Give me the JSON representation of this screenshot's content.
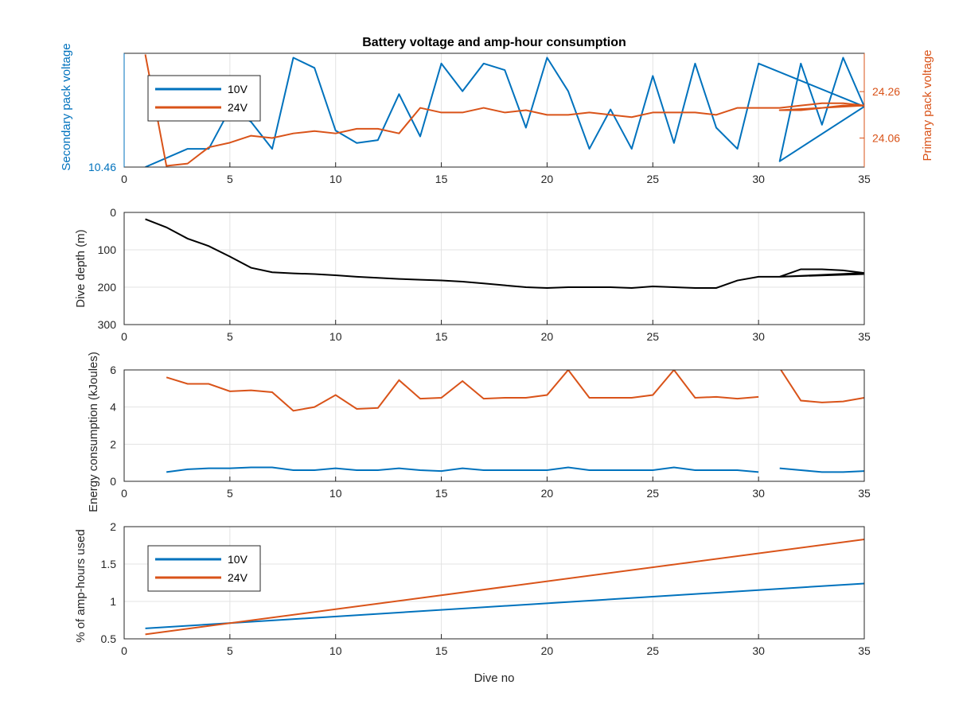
{
  "figure_title": "Battery voltage and amp-hour consumption",
  "chart_data": [
    {
      "type": "line",
      "title": "Battery voltage and amp-hour consumption",
      "xlabel": "",
      "ylabel_left": "Secondary pack voltage",
      "ylabel_right": "Primary pack voltage",
      "xlim": [
        0,
        35
      ],
      "xticks": [
        0,
        5,
        10,
        15,
        20,
        25,
        30,
        35
      ],
      "yticks_left": [
        "10.46"
      ],
      "yticks_right": [
        "24.06",
        "24.26"
      ],
      "grid": true,
      "legend": {
        "position": "top-left",
        "entries": [
          "10V",
          "24V"
        ]
      },
      "series": [
        {
          "name": "10V",
          "color": "#0072BD",
          "axis": "left",
          "x": [
            1,
            3,
            4,
            5,
            6,
            7,
            8,
            9,
            10,
            11,
            12,
            13,
            14,
            15,
            16,
            17,
            18,
            19,
            20,
            21,
            22,
            23,
            24,
            25,
            26,
            27,
            28,
            29,
            30,
            35,
            31,
            32,
            33,
            34,
            35
          ],
          "y": [
            10.46,
            10.71,
            10.71,
            11.25,
            11.08,
            10.71,
            11.96,
            11.82,
            10.96,
            10.79,
            10.83,
            11.46,
            10.88,
            11.88,
            11.5,
            11.88,
            11.79,
            11.0,
            11.96,
            11.5,
            10.71,
            11.25,
            10.71,
            11.71,
            10.79,
            11.88,
            11.0,
            10.71,
            11.88,
            11.29,
            10.54,
            11.88,
            11.04,
            11.96,
            11.29
          ]
        },
        {
          "name": "24V",
          "color": "#D95319",
          "axis": "right",
          "x": [
            1,
            2,
            3,
            4,
            5,
            6,
            7,
            8,
            9,
            10,
            11,
            12,
            13,
            14,
            15,
            16,
            17,
            18,
            19,
            20,
            21,
            22,
            23,
            24,
            25,
            26,
            27,
            28,
            29,
            30,
            31,
            32,
            33,
            34,
            35,
            31,
            32,
            33,
            34,
            35
          ],
          "y": [
            24.42,
            23.94,
            23.95,
            24.02,
            24.04,
            24.07,
            24.06,
            24.08,
            24.09,
            24.08,
            24.1,
            24.1,
            24.08,
            24.19,
            24.17,
            24.17,
            24.19,
            24.17,
            24.18,
            24.16,
            24.16,
            24.17,
            24.16,
            24.15,
            24.17,
            24.17,
            24.17,
            24.16,
            24.19,
            24.19,
            24.19,
            24.2,
            24.21,
            24.21,
            24.2,
            24.18,
            24.18,
            24.19,
            24.2,
            24.2
          ]
        }
      ]
    },
    {
      "type": "line",
      "title": "",
      "xlabel": "",
      "ylabel": "Dive depth (m)",
      "xlim": [
        0,
        35
      ],
      "ylim": [
        0,
        300
      ],
      "y_reversed": true,
      "xticks": [
        0,
        5,
        10,
        15,
        20,
        25,
        30,
        35
      ],
      "yticks": [
        0,
        100,
        200,
        300
      ],
      "grid": true,
      "series": [
        {
          "color": "#000000",
          "x": [
            1,
            2,
            3,
            4,
            5,
            6,
            7,
            8,
            9,
            10,
            11,
            12,
            13,
            14,
            15,
            16,
            17,
            18,
            19,
            20,
            21,
            22,
            23,
            24,
            25,
            26,
            27,
            28,
            29,
            30,
            31,
            32,
            33,
            34,
            35,
            31,
            35
          ],
          "y": [
            18,
            40,
            70,
            90,
            118,
            148,
            160,
            163,
            165,
            168,
            172,
            175,
            178,
            180,
            182,
            185,
            190,
            195,
            200,
            202,
            200,
            200,
            200,
            202,
            198,
            200,
            202,
            202,
            182,
            172,
            172,
            152,
            152,
            155,
            162,
            172,
            165
          ]
        }
      ]
    },
    {
      "type": "line",
      "title": "",
      "xlabel": "",
      "ylabel": "Energy consumption (kJoules)",
      "xlim": [
        0,
        35
      ],
      "ylim": [
        0,
        6
      ],
      "xticks": [
        0,
        5,
        10,
        15,
        20,
        25,
        30,
        35
      ],
      "yticks": [
        0,
        2,
        4,
        6
      ],
      "grid": true,
      "series": [
        {
          "color": "#D95319",
          "segments": [
            {
              "x": [
                2,
                3,
                4,
                5,
                6,
                7,
                8,
                9,
                10,
                11,
                12,
                13,
                14,
                15,
                16,
                17,
                18,
                19,
                20,
                21,
                22,
                23,
                24,
                25,
                26,
                27,
                28,
                29,
                30
              ],
              "y": [
                5.6,
                5.25,
                5.25,
                4.85,
                4.9,
                4.8,
                3.8,
                4.0,
                4.65,
                3.9,
                3.95,
                5.45,
                4.45,
                4.5,
                5.4,
                4.45,
                4.5,
                4.5,
                4.65,
                6.0,
                4.5,
                4.5,
                4.5,
                4.65,
                6.0,
                4.5,
                4.55,
                4.45,
                4.55
              ]
            },
            {
              "x": [
                31,
                32,
                33,
                34,
                35
              ],
              "y": [
                6.1,
                4.35,
                4.25,
                4.3,
                4.5
              ]
            }
          ]
        },
        {
          "color": "#0072BD",
          "segments": [
            {
              "x": [
                2,
                3,
                4,
                5,
                6,
                7,
                8,
                9,
                10,
                11,
                12,
                13,
                14,
                15,
                16,
                17,
                18,
                19,
                20,
                21,
                22,
                23,
                24,
                25,
                26,
                27,
                28,
                29,
                30
              ],
              "y": [
                0.5,
                0.65,
                0.7,
                0.7,
                0.75,
                0.75,
                0.6,
                0.6,
                0.7,
                0.6,
                0.6,
                0.7,
                0.6,
                0.55,
                0.7,
                0.6,
                0.6,
                0.6,
                0.6,
                0.75,
                0.6,
                0.6,
                0.6,
                0.6,
                0.75,
                0.6,
                0.6,
                0.6,
                0.5
              ]
            },
            {
              "x": [
                31,
                32,
                33,
                34,
                35
              ],
              "y": [
                0.7,
                0.6,
                0.5,
                0.5,
                0.55
              ]
            }
          ]
        }
      ]
    },
    {
      "type": "line",
      "title": "",
      "xlabel": "Dive no",
      "ylabel": "% of amp-hours used",
      "xlim": [
        0,
        35
      ],
      "ylim": [
        0.5,
        2
      ],
      "xticks": [
        0,
        5,
        10,
        15,
        20,
        25,
        30,
        35
      ],
      "yticks": [
        0.5,
        1,
        1.5,
        2
      ],
      "grid": true,
      "legend": {
        "position": "bottom-left",
        "entries": [
          "10V",
          "24V"
        ]
      },
      "series": [
        {
          "name": "10V",
          "color": "#0072BD",
          "x": [
            1,
            35
          ],
          "y": [
            0.64,
            1.24
          ]
        },
        {
          "name": "24V",
          "color": "#D95319",
          "x": [
            1,
            35
          ],
          "y": [
            0.56,
            1.83
          ]
        }
      ]
    }
  ]
}
